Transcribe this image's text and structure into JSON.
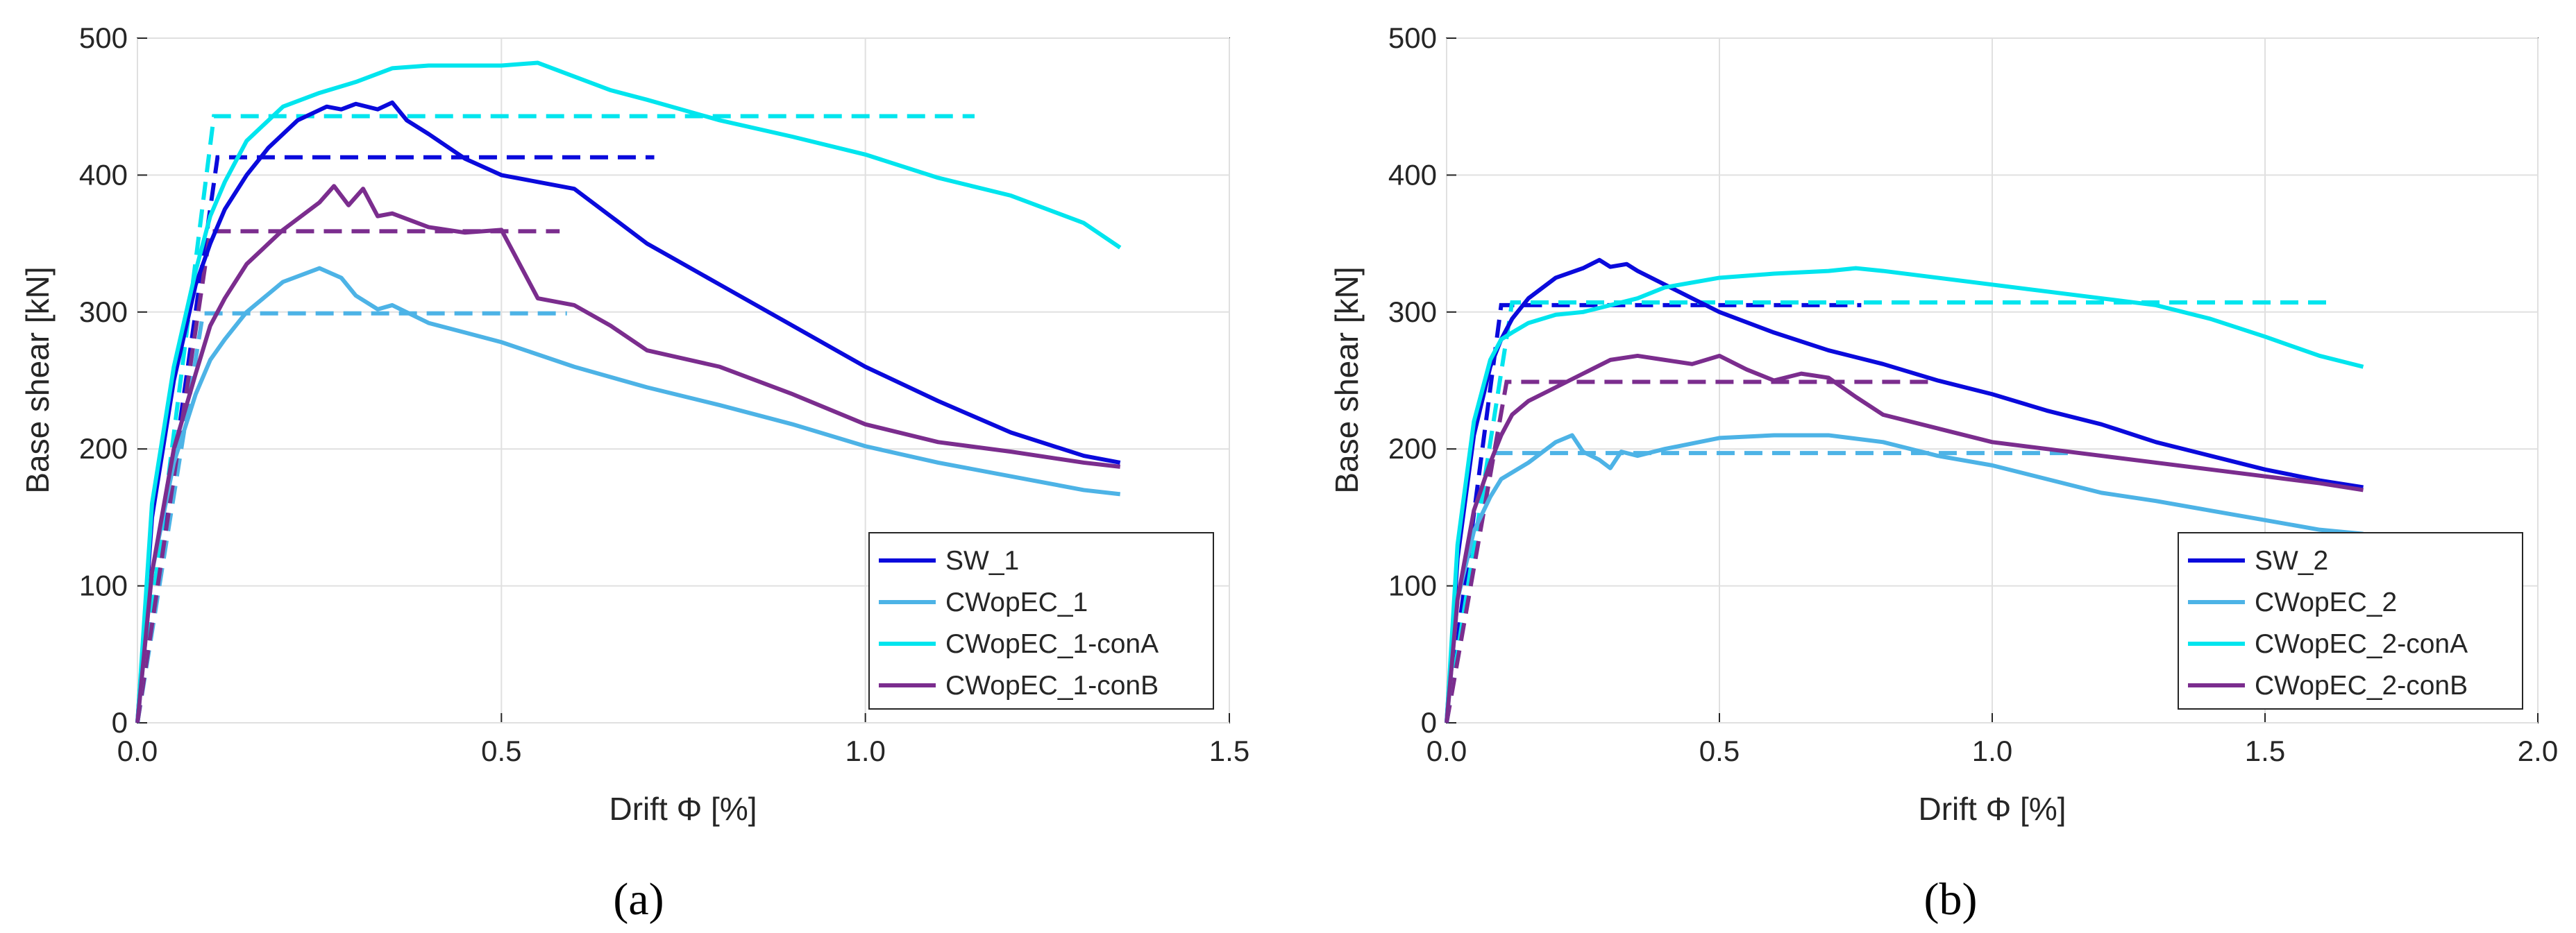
{
  "chart_data": [
    {
      "type": "line",
      "panel_label": "(a)",
      "xlabel": "Drift Φ [%]",
      "ylabel": "Base shear [kN]",
      "xlim": [
        0,
        1.5
      ],
      "ylim": [
        0,
        500
      ],
      "xticks": [
        "0.0",
        "0.5",
        "1.0",
        "1.5"
      ],
      "yticks": [
        "0",
        "100",
        "200",
        "300",
        "400",
        "500"
      ],
      "grid": true,
      "legend_position": "bottom-right",
      "series": [
        {
          "name": "SW_1",
          "color": "#0a0adc",
          "x": [
            0,
            0.02,
            0.05,
            0.08,
            0.1,
            0.12,
            0.15,
            0.18,
            0.22,
            0.26,
            0.28,
            0.3,
            0.33,
            0.35,
            0.37,
            0.4,
            0.45,
            0.5,
            0.55,
            0.6,
            0.65,
            0.7,
            0.8,
            0.9,
            1.0,
            1.1,
            1.2,
            1.3,
            1.35
          ],
          "y": [
            0,
            150,
            250,
            320,
            350,
            375,
            400,
            420,
            440,
            450,
            448,
            452,
            448,
            453,
            440,
            430,
            412,
            400,
            395,
            390,
            370,
            350,
            320,
            290,
            260,
            235,
            212,
            195,
            190
          ],
          "bilinear": {
            "x": [
              0,
              0.11,
              0.71
            ],
            "y": [
              0,
              413,
              413
            ]
          }
        },
        {
          "name": "CWopEC_1",
          "color": "#4db3e6",
          "x": [
            0,
            0.02,
            0.05,
            0.08,
            0.1,
            0.12,
            0.15,
            0.2,
            0.25,
            0.28,
            0.3,
            0.33,
            0.35,
            0.4,
            0.45,
            0.5,
            0.6,
            0.7,
            0.8,
            0.9,
            1.0,
            1.1,
            1.2,
            1.3,
            1.35
          ],
          "y": [
            0,
            110,
            190,
            240,
            265,
            280,
            300,
            322,
            332,
            325,
            312,
            302,
            305,
            292,
            285,
            278,
            260,
            245,
            232,
            218,
            202,
            190,
            180,
            170,
            167
          ],
          "bilinear": {
            "x": [
              0,
              0.09,
              0.59
            ],
            "y": [
              0,
              299,
              299
            ]
          }
        },
        {
          "name": "CWopEC_1-conA",
          "color": "#00e5ee",
          "x": [
            0,
            0.02,
            0.05,
            0.08,
            0.1,
            0.12,
            0.15,
            0.2,
            0.25,
            0.3,
            0.35,
            0.4,
            0.45,
            0.5,
            0.55,
            0.6,
            0.65,
            0.7,
            0.8,
            0.9,
            1.0,
            1.1,
            1.2,
            1.3,
            1.35
          ],
          "y": [
            0,
            160,
            260,
            330,
            370,
            395,
            425,
            450,
            460,
            468,
            478,
            480,
            480,
            480,
            482,
            472,
            462,
            455,
            440,
            428,
            415,
            398,
            385,
            365,
            347
          ],
          "bilinear": {
            "x": [
              0,
              0.105,
              1.15
            ],
            "y": [
              0,
              443,
              443
            ]
          }
        },
        {
          "name": "CWopEC_1-conB",
          "color": "#7b2d8e",
          "x": [
            0,
            0.02,
            0.05,
            0.08,
            0.1,
            0.12,
            0.15,
            0.2,
            0.25,
            0.27,
            0.29,
            0.31,
            0.33,
            0.35,
            0.4,
            0.45,
            0.5,
            0.52,
            0.55,
            0.6,
            0.65,
            0.7,
            0.8,
            0.9,
            1.0,
            1.1,
            1.2,
            1.3,
            1.35
          ],
          "y": [
            0,
            110,
            200,
            255,
            290,
            310,
            335,
            360,
            380,
            392,
            378,
            390,
            370,
            372,
            362,
            358,
            360,
            340,
            310,
            305,
            290,
            272,
            260,
            240,
            218,
            205,
            198,
            190,
            187
          ],
          "bilinear": {
            "x": [
              0,
              0.1,
              0.58
            ],
            "y": [
              0,
              359,
              359
            ]
          }
        }
      ],
      "legend": [
        "SW_1",
        "CWopEC_1",
        "CWopEC_1-conA",
        "CWopEC_1-conB"
      ]
    },
    {
      "type": "line",
      "panel_label": "(b)",
      "xlabel": "Drift Φ [%]",
      "ylabel": "Base shear [kN]",
      "xlim": [
        0,
        2.0
      ],
      "ylim": [
        0,
        500
      ],
      "xticks": [
        "0.0",
        "0.5",
        "1.0",
        "1.5",
        "2.0"
      ],
      "yticks": [
        "0",
        "100",
        "200",
        "300",
        "400",
        "500"
      ],
      "grid": true,
      "legend_position": "bottom-right",
      "series": [
        {
          "name": "SW_2",
          "color": "#0a0adc",
          "x": [
            0,
            0.02,
            0.05,
            0.08,
            0.1,
            0.12,
            0.15,
            0.2,
            0.25,
            0.28,
            0.3,
            0.33,
            0.35,
            0.4,
            0.45,
            0.5,
            0.6,
            0.7,
            0.8,
            0.9,
            1.0,
            1.1,
            1.2,
            1.3,
            1.4,
            1.5,
            1.6,
            1.68
          ],
          "y": [
            0,
            120,
            210,
            260,
            280,
            295,
            310,
            325,
            332,
            338,
            333,
            335,
            330,
            320,
            310,
            300,
            285,
            272,
            262,
            250,
            240,
            228,
            218,
            205,
            195,
            185,
            177,
            172
          ],
          "bilinear": {
            "x": [
              0,
              0.1,
              0.76
            ],
            "y": [
              0,
              305,
              305
            ]
          }
        },
        {
          "name": "CWopEC_2",
          "color": "#4db3e6",
          "x": [
            0,
            0.02,
            0.05,
            0.08,
            0.1,
            0.15,
            0.2,
            0.23,
            0.25,
            0.28,
            0.3,
            0.32,
            0.35,
            0.4,
            0.5,
            0.6,
            0.7,
            0.8,
            0.9,
            1.0,
            1.1,
            1.2,
            1.3,
            1.4,
            1.5,
            1.6,
            1.68
          ],
          "y": [
            0,
            90,
            140,
            165,
            178,
            190,
            205,
            210,
            198,
            192,
            186,
            198,
            195,
            200,
            208,
            210,
            210,
            205,
            195,
            188,
            178,
            168,
            162,
            155,
            148,
            141,
            138
          ],
          "bilinear": {
            "x": [
              0,
              0.08,
              1.15
            ],
            "y": [
              0,
              197,
              197
            ]
          }
        },
        {
          "name": "CWopEC_2-conA",
          "color": "#00e5ee",
          "x": [
            0,
            0.02,
            0.05,
            0.08,
            0.1,
            0.12,
            0.15,
            0.2,
            0.25,
            0.3,
            0.35,
            0.4,
            0.5,
            0.6,
            0.7,
            0.75,
            0.8,
            0.9,
            1.0,
            1.1,
            1.2,
            1.3,
            1.4,
            1.5,
            1.6,
            1.68
          ],
          "y": [
            0,
            130,
            220,
            265,
            280,
            285,
            292,
            298,
            300,
            305,
            310,
            318,
            325,
            328,
            330,
            332,
            330,
            325,
            320,
            315,
            310,
            305,
            295,
            282,
            268,
            260
          ],
          "bilinear": {
            "x": [
              0,
              0.12,
              1.62
            ],
            "y": [
              0,
              307,
              307
            ]
          }
        },
        {
          "name": "CWopEC_2-conB",
          "color": "#7b2d8e",
          "x": [
            0,
            0.02,
            0.05,
            0.08,
            0.1,
            0.12,
            0.15,
            0.2,
            0.25,
            0.3,
            0.35,
            0.4,
            0.45,
            0.5,
            0.55,
            0.6,
            0.65,
            0.7,
            0.75,
            0.8,
            0.9,
            1.0,
            1.1,
            1.2,
            1.3,
            1.4,
            1.5,
            1.6,
            1.68
          ],
          "y": [
            0,
            90,
            155,
            190,
            210,
            225,
            235,
            245,
            255,
            265,
            268,
            265,
            262,
            268,
            258,
            250,
            255,
            252,
            238,
            225,
            215,
            205,
            200,
            195,
            190,
            185,
            180,
            175,
            170
          ],
          "bilinear": {
            "x": [
              0,
              0.11,
              0.9
            ],
            "y": [
              0,
              249,
              249
            ]
          }
        }
      ],
      "legend": [
        "SW_2",
        "CWopEC_2",
        "CWopEC_2-conA",
        "CWopEC_2-conB"
      ]
    }
  ]
}
